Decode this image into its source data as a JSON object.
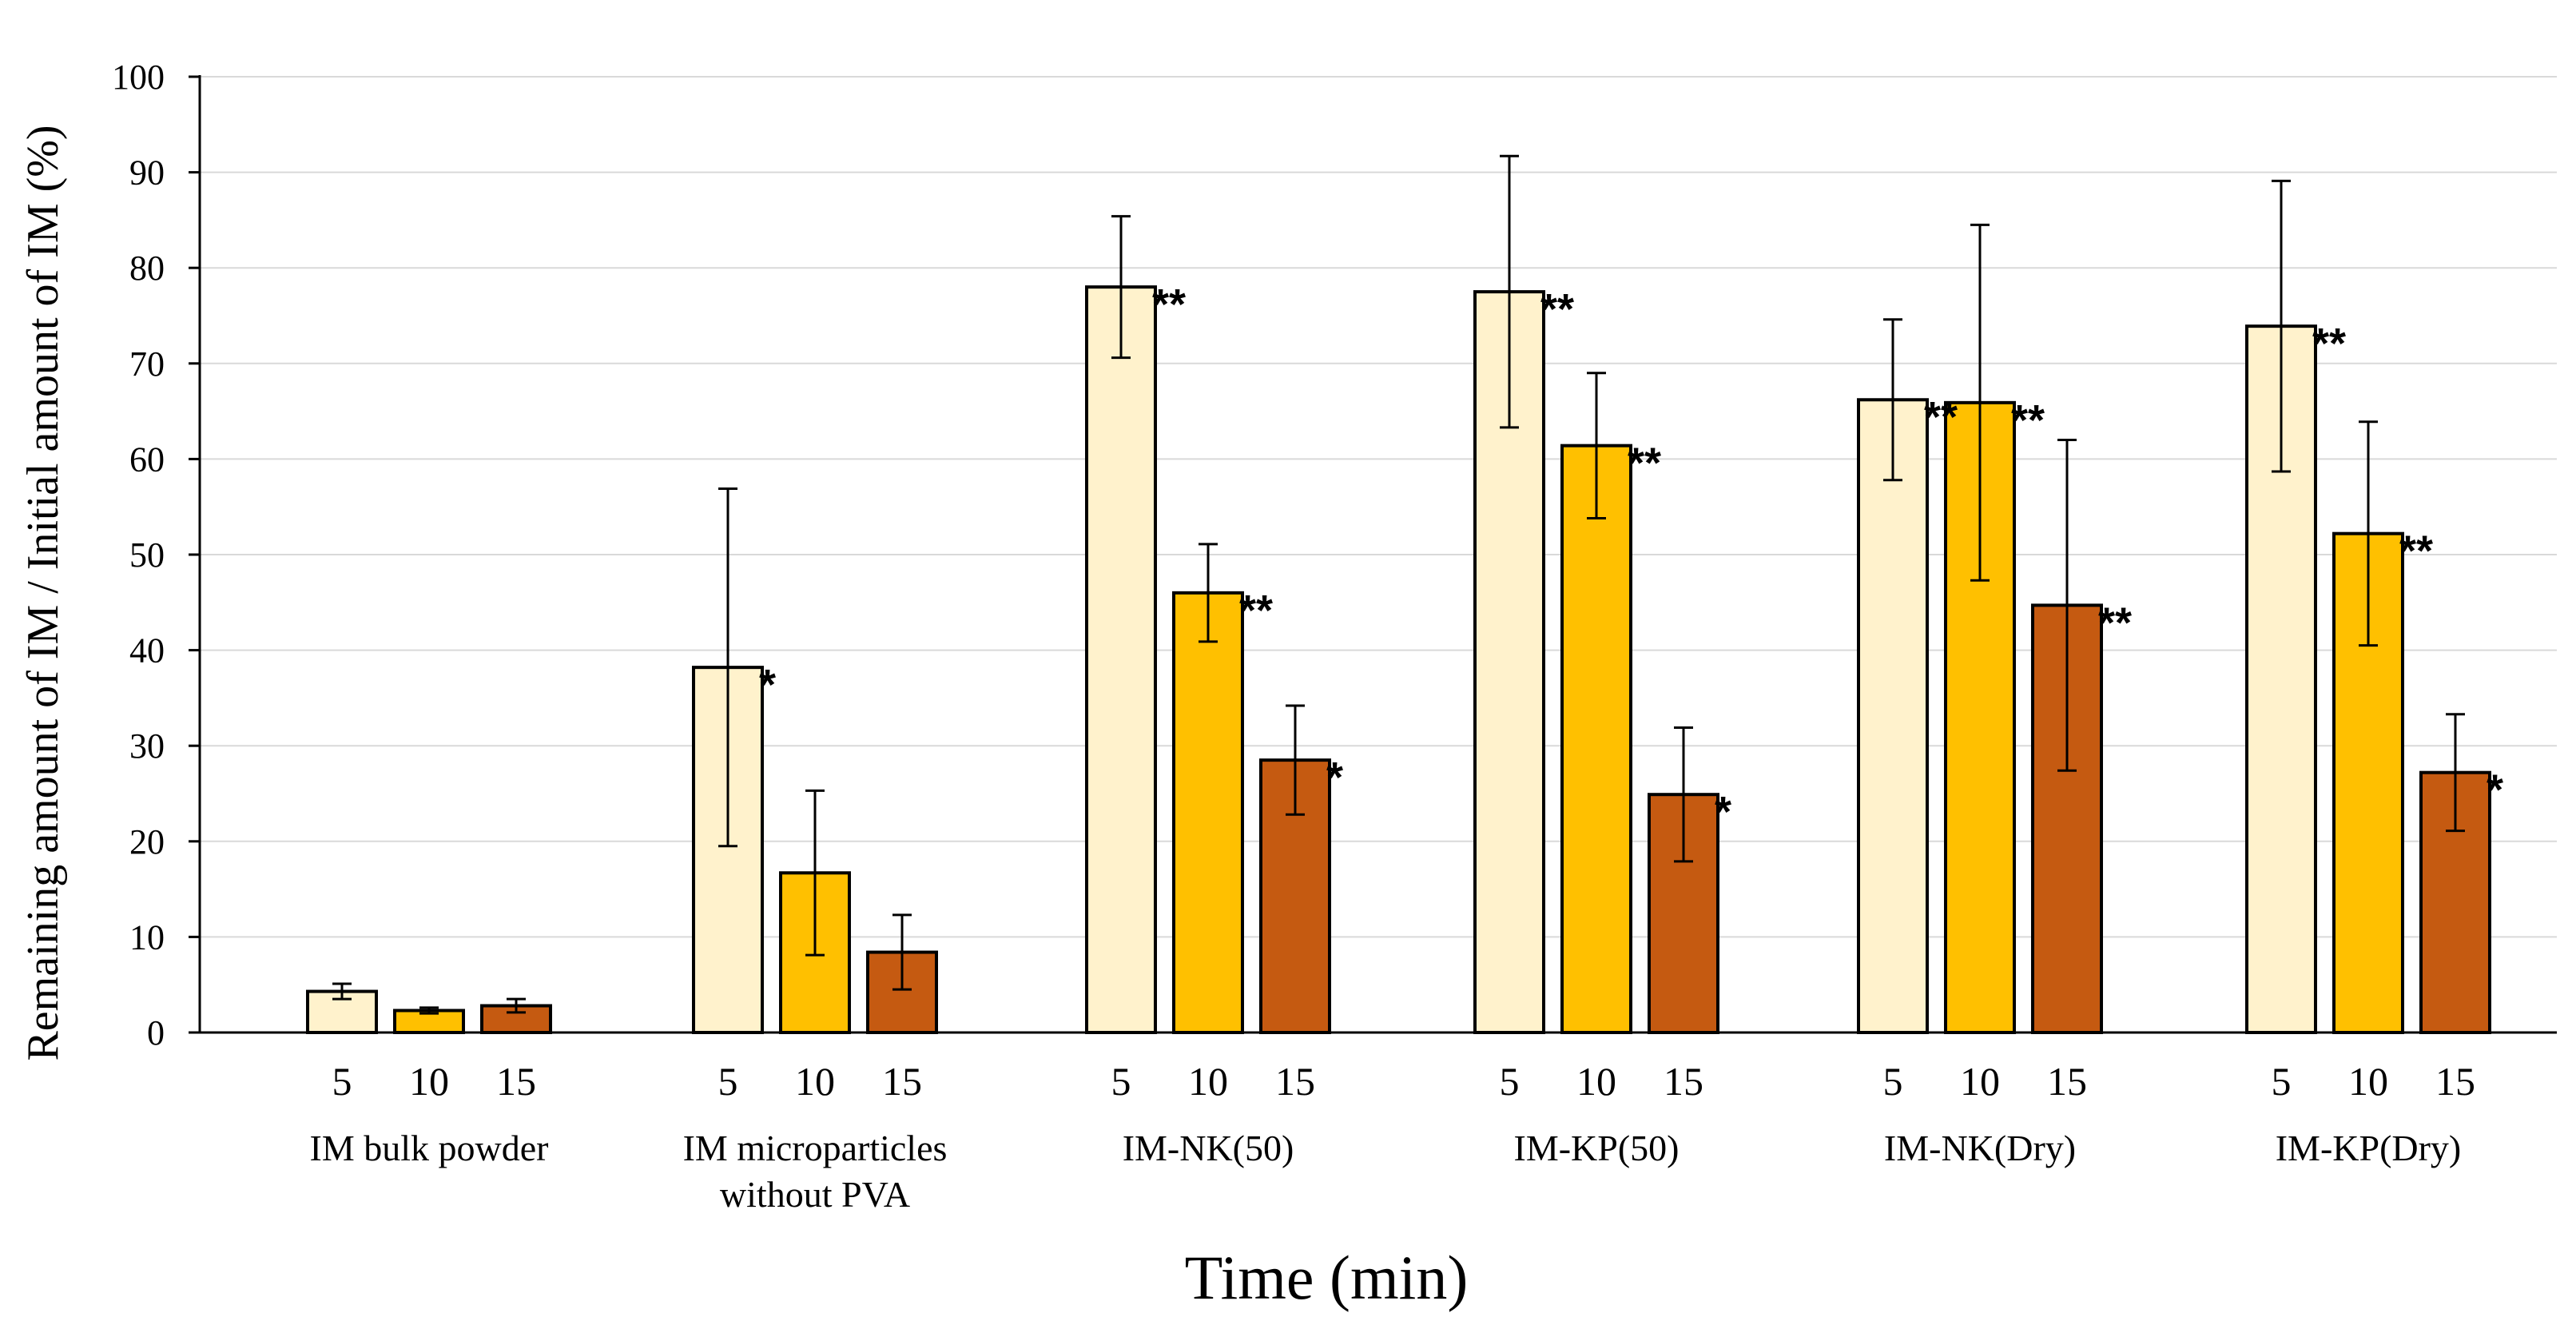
{
  "chart_data": {
    "type": "bar",
    "title": "",
    "xlabel": "Time (min)",
    "ylabel": "Remaining amount of IM / Initial amount of IM (%)",
    "ylim": [
      0,
      100
    ],
    "yticks": [
      "0",
      "10",
      "20",
      "30",
      "40",
      "50",
      "60",
      "70",
      "80",
      "90",
      "100"
    ],
    "grid": true,
    "legend": "none",
    "time_labels": [
      "5",
      "10",
      "15"
    ],
    "series_colors": [
      "#FFF2CC",
      "#FFC000",
      "#C55A11"
    ],
    "groups": [
      {
        "label_lines": [
          "IM bulk powder"
        ],
        "values": [
          4.3,
          2.3,
          2.8
        ],
        "errors": [
          0.8,
          0.3,
          0.7
        ],
        "sig": [
          "",
          "",
          ""
        ]
      },
      {
        "label_lines": [
          "IM microparticles",
          "without PVA"
        ],
        "values": [
          38.2,
          16.7,
          8.4
        ],
        "errors": [
          18.7,
          8.6,
          3.9
        ],
        "sig": [
          "*",
          "",
          ""
        ]
      },
      {
        "label_lines": [
          "IM-NK(50)"
        ],
        "values": [
          78.0,
          46.0,
          28.5
        ],
        "errors": [
          7.4,
          5.1,
          5.7
        ],
        "sig": [
          "**",
          "**",
          "*"
        ]
      },
      {
        "label_lines": [
          "IM-KP(50)"
        ],
        "values": [
          77.5,
          61.4,
          24.9
        ],
        "errors": [
          14.2,
          7.6,
          7.0
        ],
        "sig": [
          "**",
          "**",
          "*"
        ]
      },
      {
        "label_lines": [
          "IM-NK(Dry)"
        ],
        "values": [
          66.2,
          65.9,
          44.7
        ],
        "errors": [
          8.4,
          18.6,
          17.3
        ],
        "sig": [
          "**",
          "**",
          "**"
        ]
      },
      {
        "label_lines": [
          "IM-KP(Dry)"
        ],
        "values": [
          73.9,
          52.2,
          27.2
        ],
        "errors": [
          15.2,
          11.7,
          6.1
        ],
        "sig": [
          "**",
          "**",
          "*"
        ]
      }
    ]
  }
}
